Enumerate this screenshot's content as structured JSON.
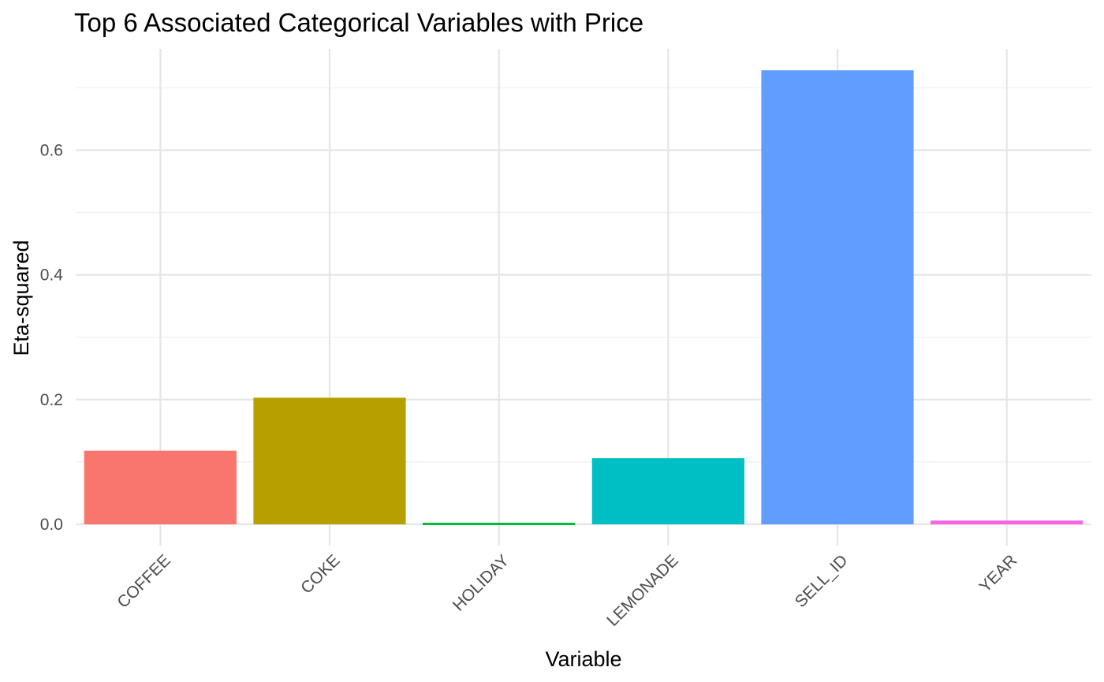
{
  "chart_data": {
    "type": "bar",
    "title": "Top 6 Associated Categorical Variables with Price",
    "xlabel": "Variable",
    "ylabel": "Eta-squared",
    "categories": [
      "COFFEE",
      "COKE",
      "HOLIDAY",
      "LEMONADE",
      "SELL_ID",
      "YEAR"
    ],
    "values": [
      0.118,
      0.203,
      0.002,
      0.106,
      0.728,
      0.006
    ],
    "colors": [
      "#F8766D",
      "#B79F00",
      "#00BA38",
      "#00BFC4",
      "#619CFF",
      "#F564E3"
    ],
    "ylim": [
      0,
      0.75
    ],
    "yticks": [
      0.0,
      0.2,
      0.4,
      0.6
    ],
    "ytick_labels": [
      "0.0",
      "0.2",
      "0.4",
      "0.6"
    ],
    "grid": true,
    "legend": "none"
  }
}
